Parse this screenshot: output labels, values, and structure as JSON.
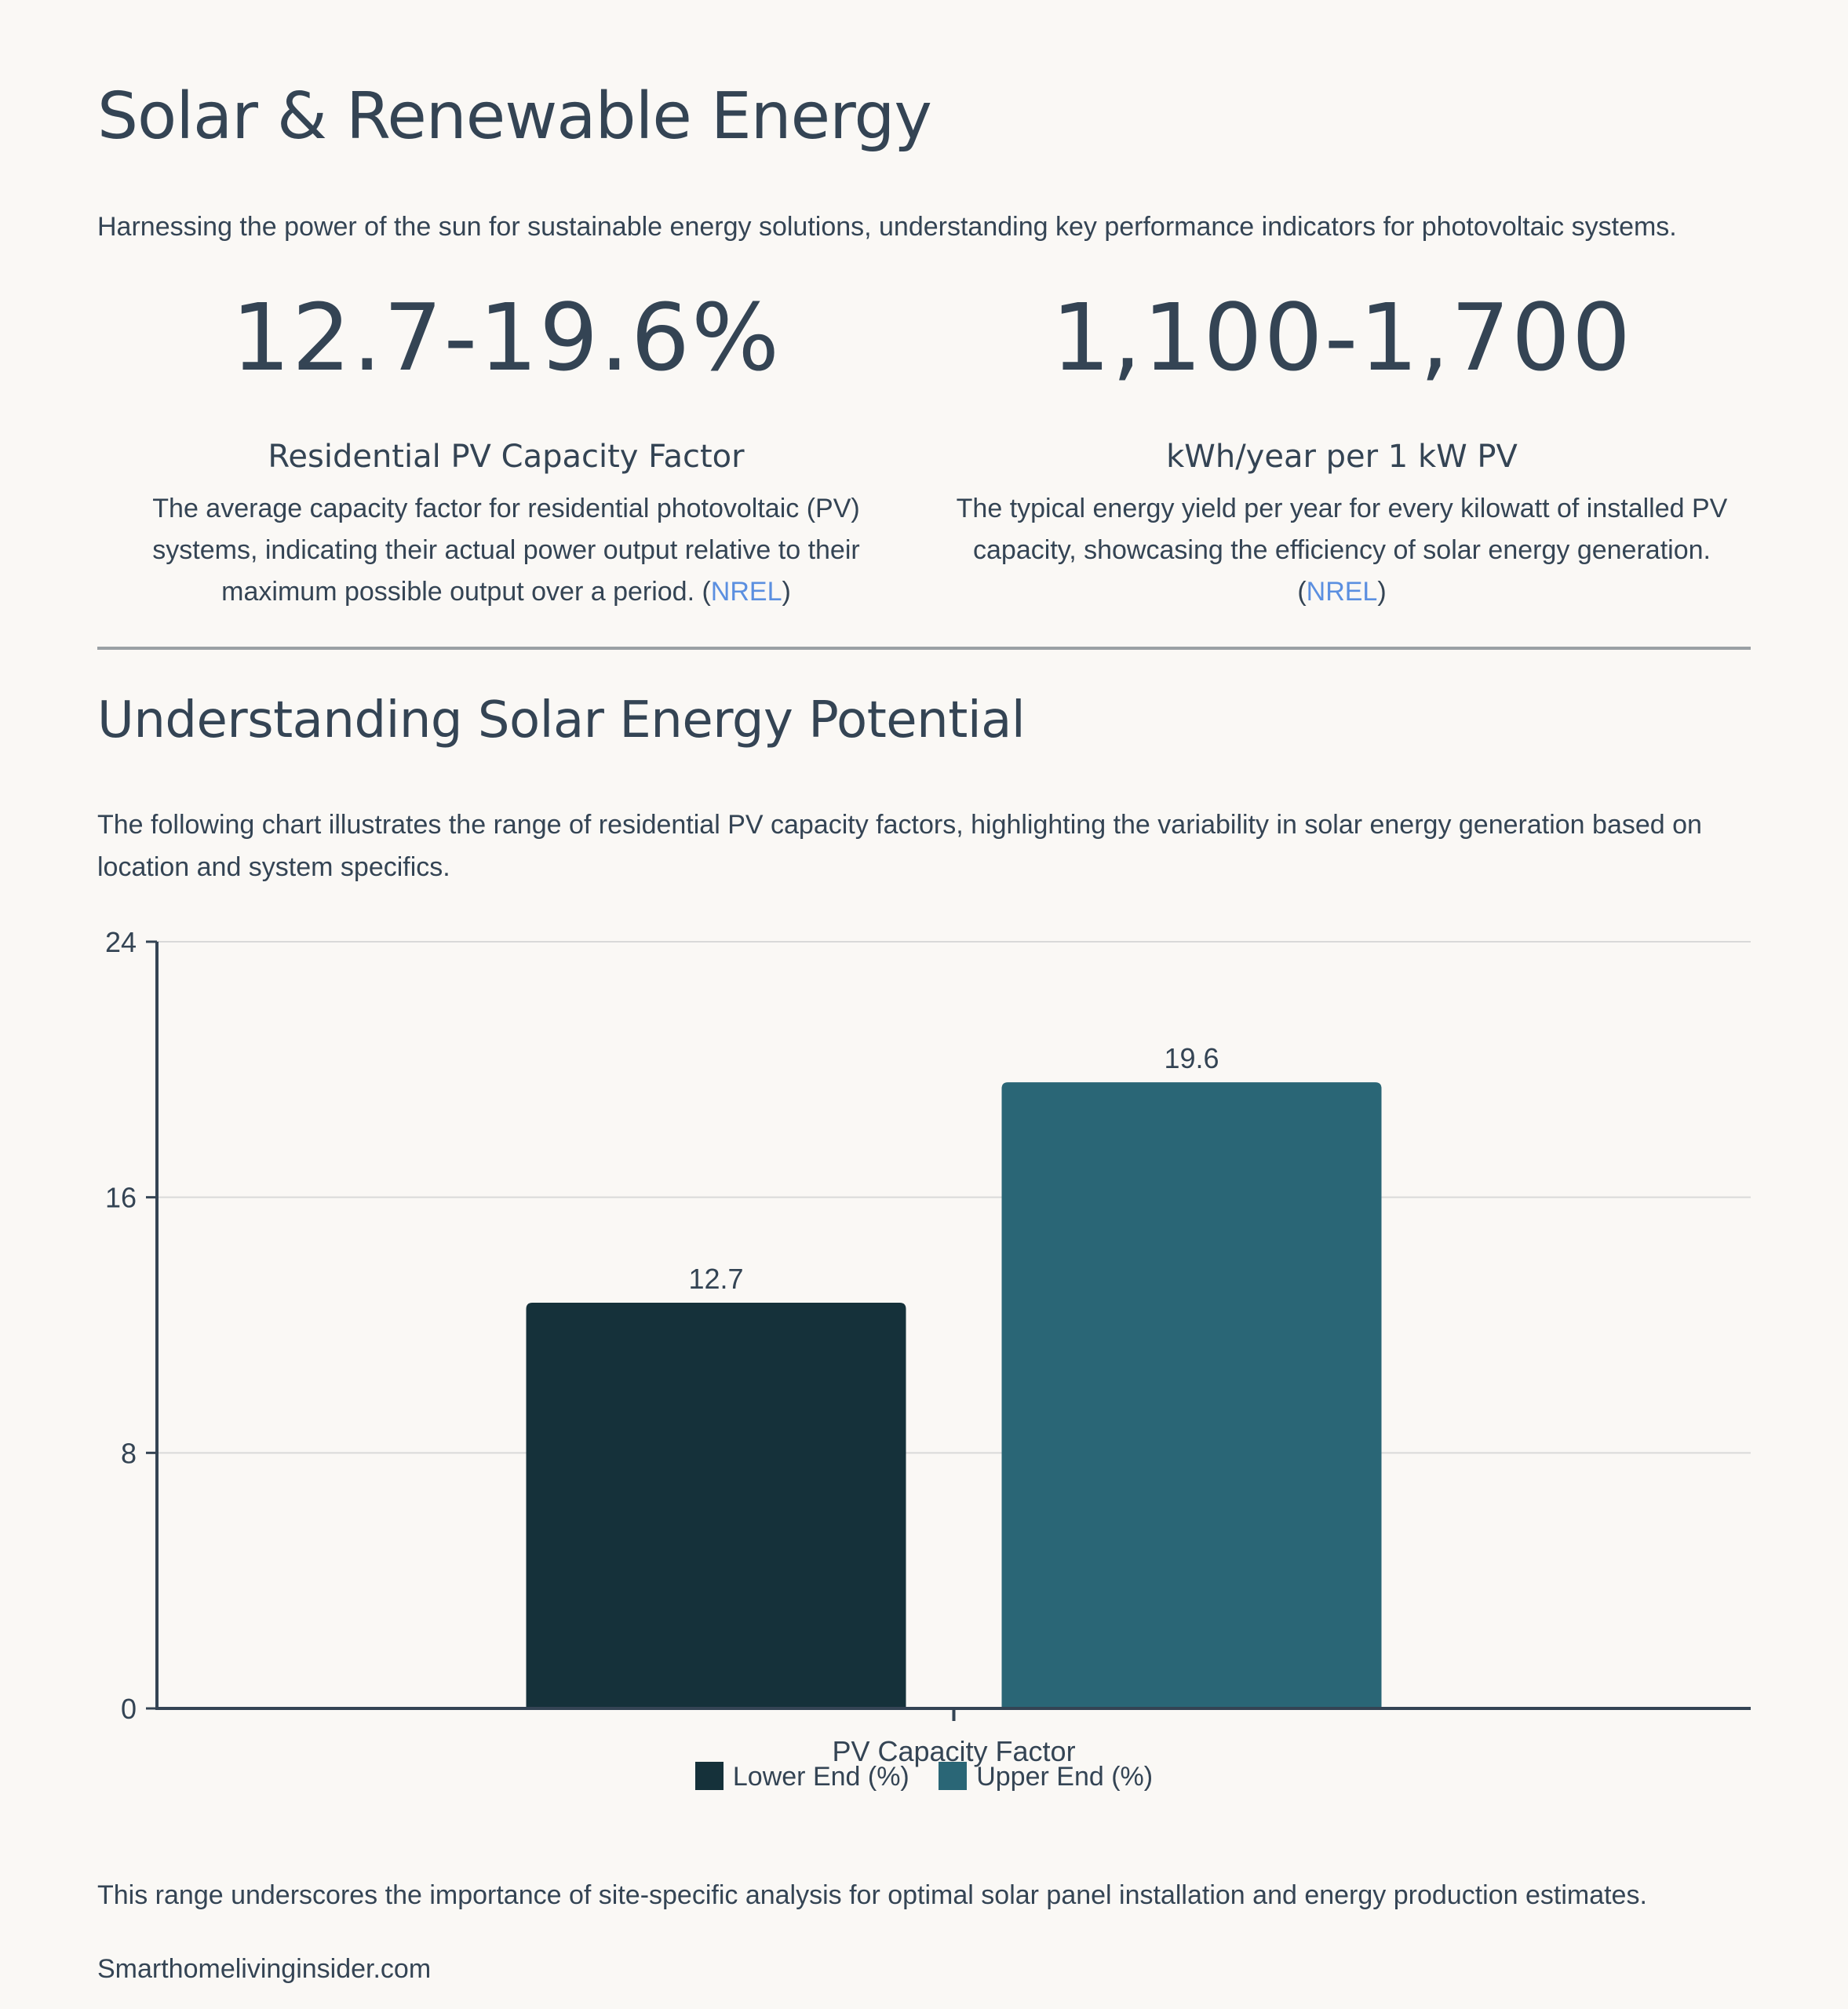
{
  "header": {
    "title": "Solar & Renewable Energy",
    "intro": "Harnessing the power of the sun for sustainable energy solutions, understanding key performance indicators for photovoltaic systems."
  },
  "stats": [
    {
      "value": "12.7-19.6%",
      "label": "Residential PV Capacity Factor",
      "description": "The average capacity factor for residential photovoltaic (PV) systems, indicating their actual power output relative to their maximum possible output over a period. (",
      "source": "NREL",
      "suffix": ")"
    },
    {
      "value": "1,100-1,700",
      "label": "kWh/year per 1 kW PV",
      "description": "The typical energy yield per year for every kilowatt of installed PV capacity, showcasing the efficiency of solar energy generation. (",
      "source": "NREL",
      "suffix": ")"
    }
  ],
  "section": {
    "title": "Understanding Solar Energy Potential",
    "intro": "The following chart illustrates the range of residential PV capacity factors, highlighting the variability in solar energy generation based on location and system specifics."
  },
  "chart_data": {
    "type": "bar",
    "categories": [
      "PV Capacity Factor"
    ],
    "series": [
      {
        "name": "Lower End (%)",
        "values": [
          12.7
        ],
        "color": "#15313a"
      },
      {
        "name": "Upper End (%)",
        "values": [
          19.6
        ],
        "color": "#2a6676"
      }
    ],
    "title": "",
    "xlabel": "",
    "ylabel": "",
    "ylim": [
      0,
      24
    ],
    "yticks": [
      0,
      8,
      16,
      24
    ],
    "data_labels": [
      "12.7",
      "19.6"
    ],
    "grid": true,
    "legend": "bottom"
  },
  "footer": {
    "outro": "This range underscores the importance of site-specific analysis for optimal solar panel installation and energy production estimates.",
    "site": "Smarthomelivinginsider.com"
  },
  "colors": {
    "background": "#faf8f5",
    "text": "#344454",
    "link": "#5b8fe0",
    "grid": "#d9d9d9",
    "axis": "#344454"
  }
}
